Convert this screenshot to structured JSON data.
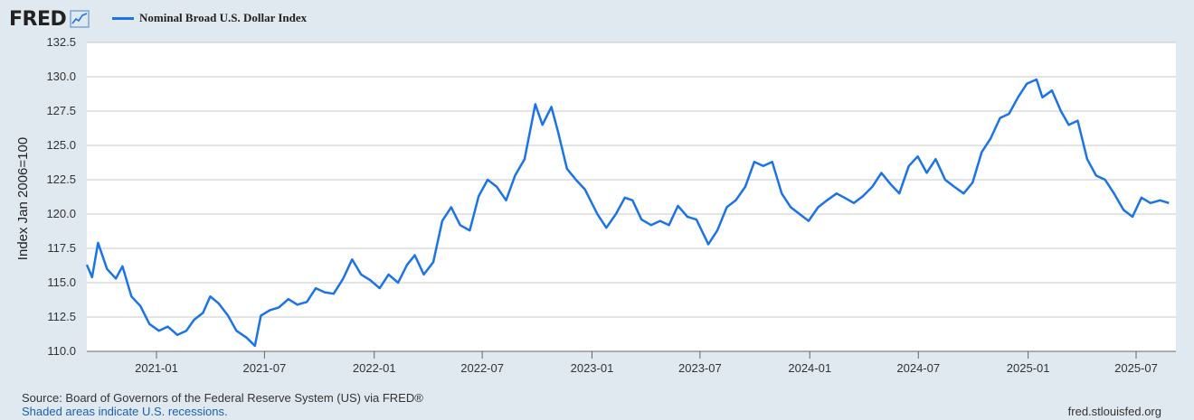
{
  "header": {
    "logo_text": "FRED",
    "logo_icon": "line-chart-icon"
  },
  "legend": {
    "label": "Nominal Broad U.S. Dollar Index",
    "color": "#1a73e8"
  },
  "footer": {
    "source": "Source: Board of Governors of the Federal Reserve System (US) via FRED®",
    "recessions": "Shaded areas indicate U.S. recessions.",
    "url": "fred.stlouisfed.org"
  },
  "chart_data": {
    "type": "line",
    "title": "",
    "ylabel": "Index Jan 2006=100",
    "xlabel": "",
    "ylim": [
      110.0,
      132.5
    ],
    "yticks": [
      "110.0",
      "112.5",
      "115.0",
      "117.5",
      "120.0",
      "122.5",
      "125.0",
      "127.5",
      "130.0",
      "132.5"
    ],
    "xticks": [
      "2021-01",
      "2021-07",
      "2022-01",
      "2022-07",
      "2023-01",
      "2023-07",
      "2024-01",
      "2024-07",
      "2025-01",
      "2025-07"
    ],
    "grid": "horizontal",
    "series": [
      {
        "name": "Nominal Broad U.S. Dollar Index",
        "color": "#1a73e8",
        "points": [
          [
            "2020-09-01",
            116.3
          ],
          [
            "2020-09-15",
            115.4
          ],
          [
            "2020-09-25",
            117.9
          ],
          [
            "2020-10-10",
            116.0
          ],
          [
            "2020-10-25",
            115.3
          ],
          [
            "2020-11-05",
            116.2
          ],
          [
            "2020-11-20",
            114.0
          ],
          [
            "2020-12-05",
            113.3
          ],
          [
            "2020-12-20",
            112.0
          ],
          [
            "2021-01-05",
            111.5
          ],
          [
            "2021-01-20",
            111.8
          ],
          [
            "2021-02-05",
            111.2
          ],
          [
            "2021-02-20",
            111.5
          ],
          [
            "2021-03-05",
            112.3
          ],
          [
            "2021-03-20",
            112.8
          ],
          [
            "2021-04-01",
            114.0
          ],
          [
            "2021-04-15",
            113.5
          ],
          [
            "2021-05-01",
            112.6
          ],
          [
            "2021-05-15",
            111.5
          ],
          [
            "2021-06-01",
            111.0
          ],
          [
            "2021-06-15",
            110.4
          ],
          [
            "2021-06-25",
            112.6
          ],
          [
            "2021-07-10",
            113.0
          ],
          [
            "2021-07-25",
            113.2
          ],
          [
            "2021-08-10",
            113.8
          ],
          [
            "2021-08-25",
            113.4
          ],
          [
            "2021-09-10",
            113.6
          ],
          [
            "2021-09-25",
            114.6
          ],
          [
            "2021-10-10",
            114.3
          ],
          [
            "2021-10-25",
            114.2
          ],
          [
            "2021-11-10",
            115.3
          ],
          [
            "2021-11-25",
            116.7
          ],
          [
            "2021-12-10",
            115.6
          ],
          [
            "2021-12-25",
            115.2
          ],
          [
            "2022-01-10",
            114.6
          ],
          [
            "2022-01-25",
            115.6
          ],
          [
            "2022-02-10",
            115.0
          ],
          [
            "2022-02-25",
            116.3
          ],
          [
            "2022-03-10",
            117.0
          ],
          [
            "2022-03-25",
            115.6
          ],
          [
            "2022-04-10",
            116.5
          ],
          [
            "2022-04-25",
            119.5
          ],
          [
            "2022-05-10",
            120.5
          ],
          [
            "2022-05-25",
            119.2
          ],
          [
            "2022-06-10",
            118.8
          ],
          [
            "2022-06-25",
            121.3
          ],
          [
            "2022-07-10",
            122.5
          ],
          [
            "2022-07-25",
            122.0
          ],
          [
            "2022-08-10",
            121.0
          ],
          [
            "2022-08-25",
            122.8
          ],
          [
            "2022-09-10",
            124.0
          ],
          [
            "2022-09-28",
            128.0
          ],
          [
            "2022-10-10",
            126.5
          ],
          [
            "2022-10-25",
            127.8
          ],
          [
            "2022-11-05",
            126.0
          ],
          [
            "2022-11-20",
            123.3
          ],
          [
            "2022-12-05",
            122.5
          ],
          [
            "2022-12-20",
            121.8
          ],
          [
            "2023-01-10",
            120.0
          ],
          [
            "2023-01-25",
            119.0
          ],
          [
            "2023-02-10",
            120.0
          ],
          [
            "2023-02-25",
            121.2
          ],
          [
            "2023-03-10",
            121.0
          ],
          [
            "2023-03-25",
            119.6
          ],
          [
            "2023-04-10",
            119.2
          ],
          [
            "2023-04-25",
            119.5
          ],
          [
            "2023-05-10",
            119.2
          ],
          [
            "2023-05-25",
            120.6
          ],
          [
            "2023-06-10",
            119.8
          ],
          [
            "2023-06-25",
            119.6
          ],
          [
            "2023-07-15",
            117.8
          ],
          [
            "2023-07-30",
            118.8
          ],
          [
            "2023-08-15",
            120.5
          ],
          [
            "2023-08-30",
            121.0
          ],
          [
            "2023-09-15",
            122.0
          ],
          [
            "2023-09-30",
            123.8
          ],
          [
            "2023-10-15",
            123.5
          ],
          [
            "2023-10-30",
            123.8
          ],
          [
            "2023-11-15",
            121.5
          ],
          [
            "2023-11-30",
            120.5
          ],
          [
            "2023-12-15",
            120.0
          ],
          [
            "2023-12-30",
            119.5
          ],
          [
            "2024-01-15",
            120.5
          ],
          [
            "2024-01-30",
            121.0
          ],
          [
            "2024-02-15",
            121.5
          ],
          [
            "2024-02-28",
            121.2
          ],
          [
            "2024-03-15",
            120.8
          ],
          [
            "2024-03-30",
            121.3
          ],
          [
            "2024-04-15",
            122.0
          ],
          [
            "2024-04-30",
            123.0
          ],
          [
            "2024-05-15",
            122.2
          ],
          [
            "2024-05-30",
            121.5
          ],
          [
            "2024-06-15",
            123.5
          ],
          [
            "2024-06-30",
            124.2
          ],
          [
            "2024-07-15",
            123.0
          ],
          [
            "2024-07-30",
            124.0
          ],
          [
            "2024-08-15",
            122.5
          ],
          [
            "2024-08-30",
            122.0
          ],
          [
            "2024-09-15",
            121.5
          ],
          [
            "2024-09-30",
            122.3
          ],
          [
            "2024-10-15",
            124.5
          ],
          [
            "2024-10-30",
            125.5
          ],
          [
            "2024-11-15",
            127.0
          ],
          [
            "2024-11-30",
            127.3
          ],
          [
            "2024-12-15",
            128.5
          ],
          [
            "2024-12-30",
            129.5
          ],
          [
            "2025-01-15",
            129.8
          ],
          [
            "2025-01-25",
            128.5
          ],
          [
            "2025-02-10",
            129.0
          ],
          [
            "2025-02-25",
            127.5
          ],
          [
            "2025-03-10",
            126.5
          ],
          [
            "2025-03-25",
            126.8
          ],
          [
            "2025-04-10",
            124.0
          ],
          [
            "2025-04-25",
            122.8
          ],
          [
            "2025-05-10",
            122.5
          ],
          [
            "2025-05-25",
            121.5
          ],
          [
            "2025-06-10",
            120.3
          ],
          [
            "2025-06-25",
            119.8
          ],
          [
            "2025-07-10",
            121.2
          ],
          [
            "2025-07-25",
            120.8
          ],
          [
            "2025-08-10",
            121.0
          ],
          [
            "2025-08-25",
            120.8
          ]
        ]
      }
    ]
  }
}
